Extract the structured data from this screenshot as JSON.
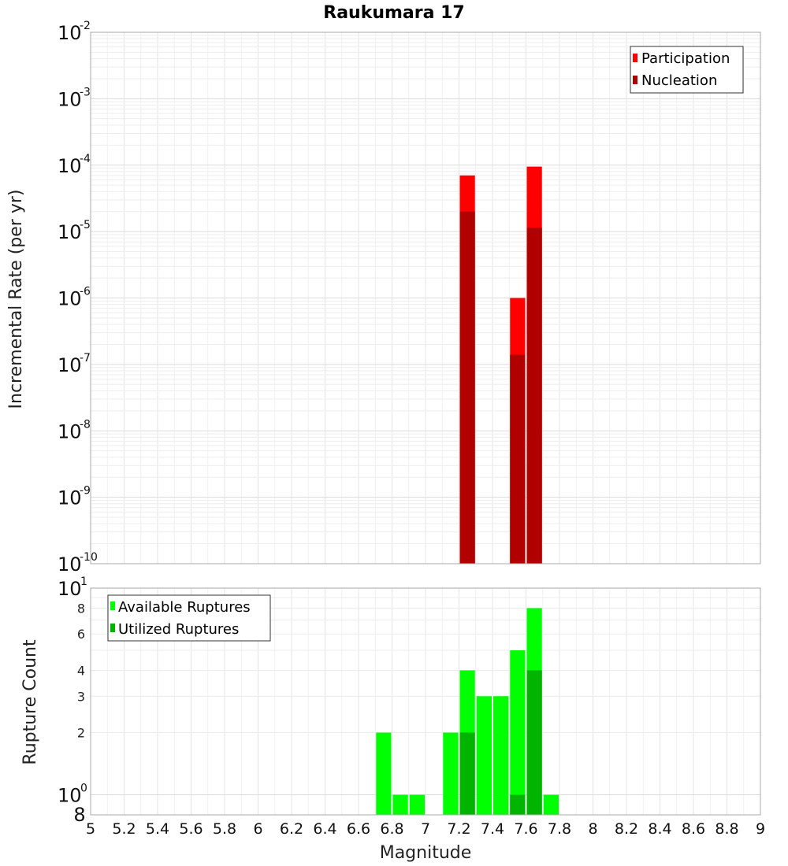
{
  "chart_data": [
    {
      "type": "bar",
      "title": "Raukumara 17",
      "ylabel": "Incremental Rate (per yr)",
      "xlabel": "",
      "xlim": [
        5,
        9
      ],
      "ylim": [
        1e-10,
        0.01
      ],
      "yscale": "log",
      "grid": true,
      "legend_position": "top-right",
      "y_tick_labels": [
        {
          "base": "10",
          "exp": "-2",
          "value": 0.01
        },
        {
          "base": "10",
          "exp": "-3",
          "value": 0.001
        },
        {
          "base": "10",
          "exp": "-4",
          "value": 0.0001
        },
        {
          "base": "10",
          "exp": "-5",
          "value": 1e-05
        },
        {
          "base": "10",
          "exp": "-6",
          "value": 1e-06
        },
        {
          "base": "10",
          "exp": "-7",
          "value": 1e-07
        },
        {
          "base": "10",
          "exp": "-8",
          "value": 1e-08
        },
        {
          "base": "10",
          "exp": "-9",
          "value": 1e-09
        },
        {
          "base": "10",
          "exp": "-10",
          "value": 1e-10
        }
      ],
      "x": [
        7.25,
        7.55,
        7.65
      ],
      "series": [
        {
          "name": "Participation",
          "color": "#ff0000",
          "values": [
            7e-05,
            1e-06,
            9.5e-05
          ]
        },
        {
          "name": "Nucleation",
          "color": "#b00000",
          "values": [
            2e-05,
            1.4e-07,
            1.15e-05
          ]
        }
      ]
    },
    {
      "type": "bar",
      "title": "",
      "ylabel": "Rupture Count",
      "xlabel": "Magnitude",
      "xlim": [
        5,
        9
      ],
      "ylim": [
        0.8,
        10
      ],
      "yscale": "log",
      "grid": true,
      "legend_position": "top-left",
      "x_tick_labels": [
        "5",
        "5.2",
        "5.4",
        "5.6",
        "5.8",
        "6",
        "6.2",
        "6.4",
        "6.6",
        "6.8",
        "7",
        "7.2",
        "7.4",
        "7.6",
        "7.8",
        "8",
        "8.2",
        "8.4",
        "8.6",
        "8.8",
        "9"
      ],
      "y_tick_labels": [
        {
          "text": "8",
          "value": 8
        },
        {
          "text": "6",
          "value": 6
        },
        {
          "text": "4",
          "value": 4
        },
        {
          "text": "3",
          "value": 3
        },
        {
          "text": "2",
          "value": 2
        }
      ],
      "y_power_labels": [
        {
          "base": "10",
          "exp": "1",
          "value": 10
        },
        {
          "base": "10",
          "exp": "0",
          "value": 1
        }
      ],
      "y_bottom_label": "8",
      "x": [
        6.75,
        6.85,
        6.95,
        7.15,
        7.25,
        7.35,
        7.45,
        7.55,
        7.65,
        7.75
      ],
      "series": [
        {
          "name": "Available Ruptures",
          "color": "#00ff00",
          "values": [
            2,
            1,
            1,
            2,
            4,
            3,
            3,
            5,
            8,
            1
          ]
        },
        {
          "name": "Utilized Ruptures",
          "color": "#00b400",
          "values": [
            0,
            0,
            0,
            0,
            2,
            0,
            0,
            1,
            4,
            0
          ]
        }
      ]
    }
  ]
}
